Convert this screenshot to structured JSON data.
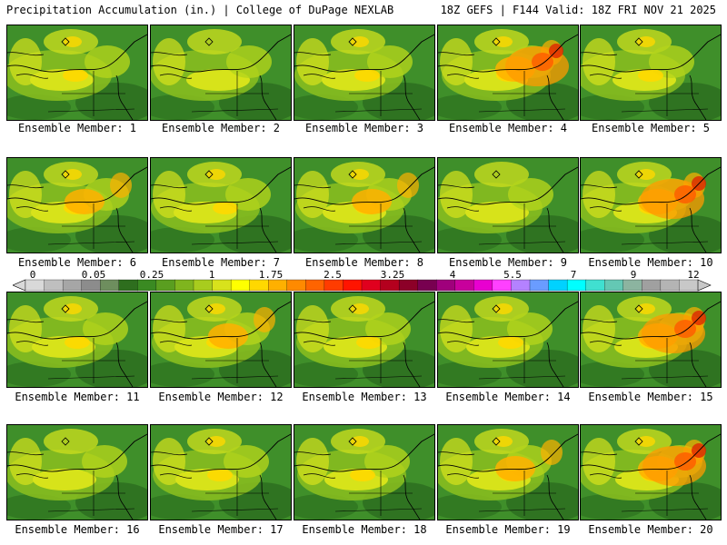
{
  "header": {
    "title": "Precipitation Accumulation (in.) | College of DuPage NEXLAB",
    "run_info": "18Z GEFS | F144 Valid: 18Z FRI NOV 21 2025"
  },
  "panels": [
    {
      "label": "Ensemble Member: 1",
      "intensity": 1
    },
    {
      "label": "Ensemble Member: 2",
      "intensity": 0
    },
    {
      "label": "Ensemble Member: 3",
      "intensity": 1
    },
    {
      "label": "Ensemble Member: 4",
      "intensity": 3
    },
    {
      "label": "Ensemble Member: 5",
      "intensity": 1
    },
    {
      "label": "Ensemble Member: 6",
      "intensity": 2
    },
    {
      "label": "Ensemble Member: 7",
      "intensity": 1
    },
    {
      "label": "Ensemble Member: 8",
      "intensity": 2
    },
    {
      "label": "Ensemble Member: 9",
      "intensity": 0
    },
    {
      "label": "Ensemble Member: 10",
      "intensity": 3
    },
    {
      "label": "Ensemble Member: 11",
      "intensity": 1
    },
    {
      "label": "Ensemble Member: 12",
      "intensity": 2
    },
    {
      "label": "Ensemble Member: 13",
      "intensity": 1
    },
    {
      "label": "Ensemble Member: 14",
      "intensity": 1
    },
    {
      "label": "Ensemble Member: 15",
      "intensity": 3
    },
    {
      "label": "Ensemble Member: 16",
      "intensity": 0
    },
    {
      "label": "Ensemble Member: 17",
      "intensity": 1
    },
    {
      "label": "Ensemble Member: 18",
      "intensity": 1
    },
    {
      "label": "Ensemble Member: 19",
      "intensity": 2
    },
    {
      "label": "Ensemble Member: 20",
      "intensity": 3
    }
  ],
  "colorbar": {
    "labels": [
      "0",
      "0.05",
      "0.25",
      "1",
      "1.75",
      "2.5",
      "3.25",
      "4",
      "5.5",
      "7",
      "9",
      "12"
    ],
    "colors": [
      "#d9d9d9",
      "#bfbfbf",
      "#a6a6a6",
      "#8c8c8c",
      "#6e8e5e",
      "#2e6e1e",
      "#3a8a22",
      "#5a9e20",
      "#7fb51e",
      "#a8cc1e",
      "#d8e21c",
      "#ffff00",
      "#ffd800",
      "#ffb000",
      "#ff8a00",
      "#ff6400",
      "#ff3c00",
      "#ff1400",
      "#e0001e",
      "#b4001e",
      "#8c0028",
      "#780050",
      "#a0007c",
      "#c8009c",
      "#e800d0",
      "#ff40ff",
      "#b482ff",
      "#6a9cff",
      "#00d2ff",
      "#00ffff",
      "#40e0d0",
      "#64c8b4",
      "#8cb4a0",
      "#a0a0a0",
      "#b4b4b4",
      "#c8c8c8"
    ]
  }
}
